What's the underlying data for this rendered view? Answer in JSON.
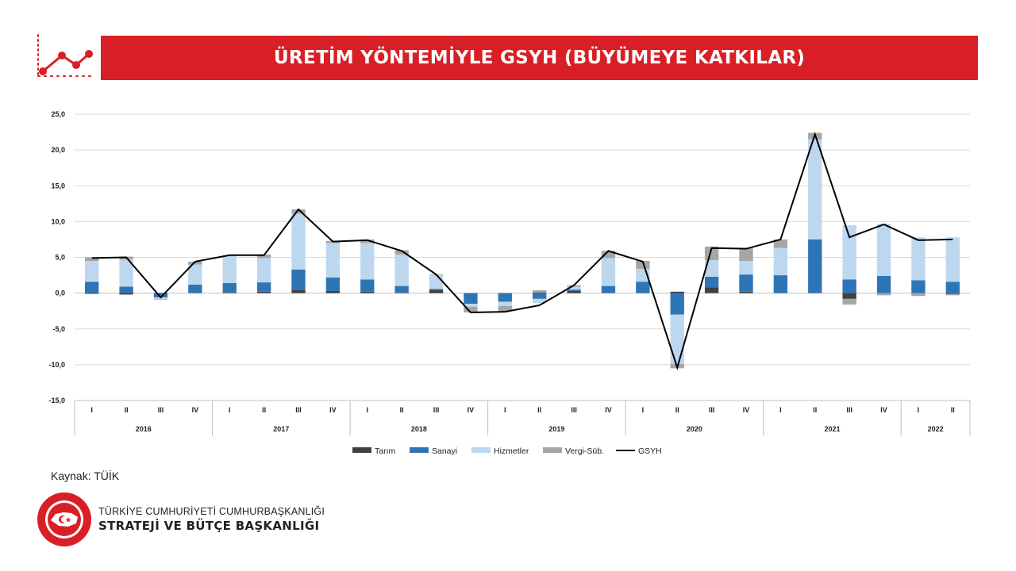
{
  "header": {
    "title": "ÜRETİM YÖNTEMİYLE GSYH (BÜYÜMEYE KATKILAR)",
    "icon": "trend-chart-icon"
  },
  "footer": {
    "source": "Kaynak: TÜİK",
    "org_line1": "TÜRKİYE CUMHURİYETİ CUMHURBAŞKANLIĞI",
    "org_line2": "STRATEJİ VE BÜTÇE BAŞKANLIĞI",
    "seal_icon": "presidency-seal-icon"
  },
  "chart_data": {
    "type": "bar",
    "stacked": true,
    "title": "",
    "xlabel": "",
    "ylabel": "",
    "ylim": [
      -15,
      25
    ],
    "yticks": [
      "-15,0",
      "-10,0",
      "-5,0",
      "0,0",
      "5,0",
      "10,0",
      "15,0",
      "20,0",
      "25,0"
    ],
    "grid": true,
    "legend_position": "bottom",
    "categories": [
      "I",
      "II",
      "III",
      "IV",
      "I",
      "II",
      "III",
      "IV",
      "I",
      "II",
      "III",
      "IV",
      "I",
      "II",
      "III",
      "IV",
      "I",
      "II",
      "III",
      "IV",
      "I",
      "II",
      "III",
      "IV",
      "I",
      "II"
    ],
    "year_groups": [
      {
        "label": "2016",
        "count": 4
      },
      {
        "label": "2017",
        "count": 4
      },
      {
        "label": "2018",
        "count": 4
      },
      {
        "label": "2019",
        "count": 4
      },
      {
        "label": "2020",
        "count": 4
      },
      {
        "label": "2021",
        "count": 4
      },
      {
        "label": "2022",
        "count": 2
      }
    ],
    "series": [
      {
        "name": "Tarım",
        "kind": "bar",
        "color": "#404040",
        "values": [
          -0.1,
          -0.2,
          -0.1,
          0.0,
          0.1,
          0.2,
          0.4,
          0.3,
          0.2,
          0.1,
          0.4,
          0.0,
          0.0,
          0.1,
          0.3,
          0.0,
          0.0,
          0.2,
          0.8,
          0.2,
          0.0,
          0.0,
          -0.8,
          0.0,
          0.0,
          -0.1
        ]
      },
      {
        "name": "Sanayi",
        "kind": "bar",
        "color": "#2e75b6",
        "values": [
          1.6,
          0.9,
          -0.5,
          1.2,
          1.3,
          1.3,
          2.9,
          1.9,
          1.7,
          0.9,
          0.2,
          -1.5,
          -1.2,
          -0.8,
          0.2,
          1.0,
          1.6,
          -3.0,
          1.5,
          2.4,
          2.5,
          7.5,
          1.9,
          2.4,
          1.8,
          1.6
        ]
      },
      {
        "name": "Hizmetler",
        "kind": "bar",
        "color": "#bdd7ee",
        "values": [
          2.9,
          3.8,
          -0.2,
          2.8,
          3.8,
          3.4,
          7.8,
          4.8,
          5.1,
          4.4,
          1.9,
          -0.4,
          -0.6,
          -0.6,
          0.4,
          3.9,
          1.8,
          -6.9,
          2.3,
          1.9,
          3.8,
          14.0,
          7.6,
          7.3,
          6.0,
          6.2
        ]
      },
      {
        "name": "Vergi-Süb.",
        "kind": "bar",
        "color": "#a6a6a6",
        "values": [
          0.5,
          0.4,
          -0.1,
          0.4,
          0.1,
          0.5,
          0.6,
          0.3,
          0.5,
          0.6,
          0.1,
          -0.8,
          -0.7,
          0.3,
          0.2,
          1.0,
          1.1,
          -0.6,
          1.9,
          1.8,
          1.2,
          0.9,
          -0.8,
          -0.3,
          -0.4,
          -0.2
        ]
      },
      {
        "name": "GSYH",
        "kind": "line",
        "color": "#000000",
        "values": [
          4.9,
          5.0,
          -0.6,
          4.4,
          5.3,
          5.3,
          11.7,
          7.2,
          7.4,
          5.9,
          2.6,
          -2.7,
          -2.6,
          -1.7,
          1.1,
          5.9,
          4.4,
          -10.4,
          6.3,
          6.2,
          7.5,
          22.2,
          7.8,
          9.6,
          7.4,
          7.5
        ]
      }
    ]
  }
}
